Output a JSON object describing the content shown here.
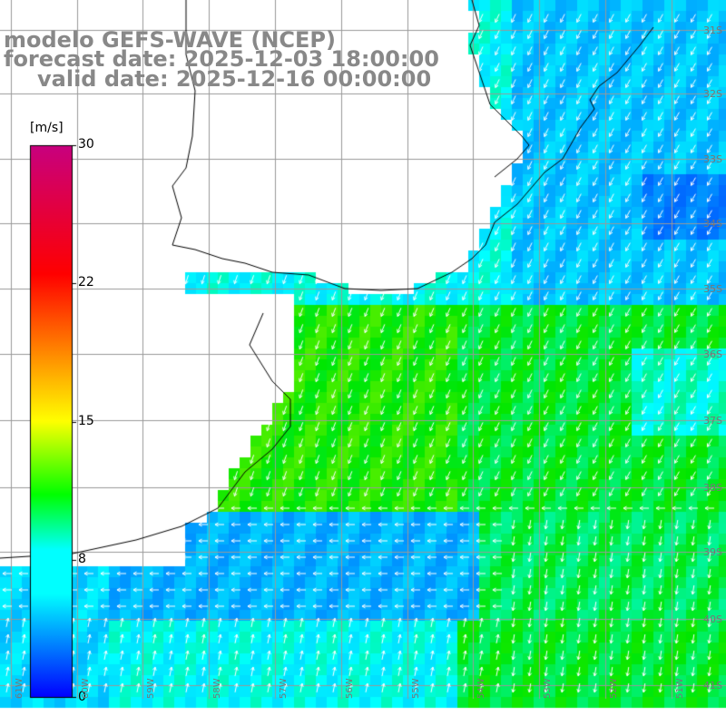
{
  "title": {
    "line1": "modelo GEFS-WAVE (NCEP)",
    "line2": "forecast date: 2025-12-03 18:00:00",
    "line3": "valid date: 2025-12-16 00:00:00"
  },
  "colorbar": {
    "unit": "[m/s]",
    "ticks": [
      "30",
      "22",
      "15",
      "8",
      "0"
    ],
    "range": [
      0,
      30
    ],
    "colors": [
      "#0000ff",
      "#00ffff",
      "#00ff00",
      "#ffff00",
      "#ff7f00",
      "#ff0000",
      "#c8007f"
    ]
  },
  "map": {
    "variable": "wind speed with wind direction arrows",
    "latitude_labels": [
      "31S",
      "32S",
      "33S",
      "34S",
      "35S",
      "36S",
      "37S",
      "38S",
      "39S",
      "40S",
      "41S"
    ],
    "longitude_labels": [
      "61W",
      "60W",
      "59W",
      "58W",
      "57W",
      "56W",
      "55W",
      "54W",
      "53W",
      "52W",
      "51W"
    ],
    "arrow_color": "#ffffff",
    "coastline_color": "#000000",
    "grid_color": "#999999"
  }
}
